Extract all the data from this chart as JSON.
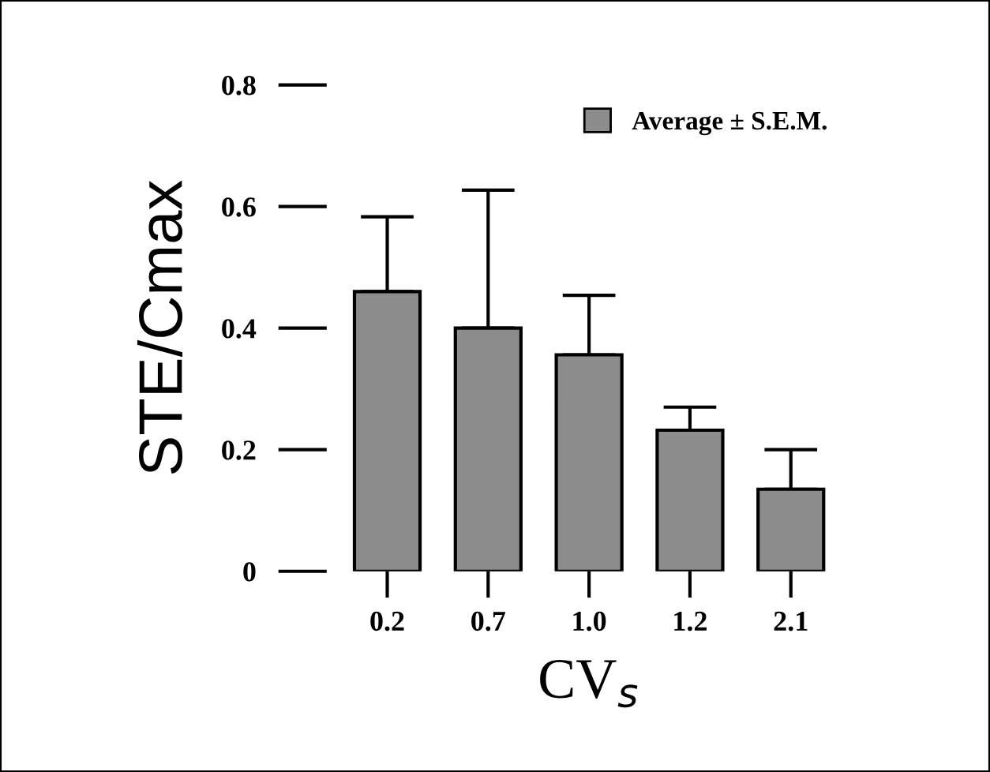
{
  "chart_data": {
    "type": "bar",
    "xlabel": "CV$_{s}$",
    "ylabel": "STE/Cmax",
    "categories": [
      "0.2",
      "0.7",
      "1.0",
      "1.2",
      "2.1"
    ],
    "series": [
      {
        "name": "Average ± S.E.M.",
        "color": "#8c8c8c",
        "values": [
          0.46,
          0.4,
          0.356,
          0.232,
          0.135
        ],
        "errors": [
          [
            0.46,
            0.583
          ],
          [
            0.4,
            0.627
          ],
          [
            0.356,
            0.454
          ],
          [
            0.232,
            0.27
          ],
          [
            0.135,
            0.2
          ]
        ]
      }
    ],
    "ylim": [
      0,
      0.8
    ],
    "yticks": [
      {
        "value": 0,
        "label": "0"
      },
      0.2,
      0.4,
      0.6,
      0.8
    ],
    "grid": false,
    "legend": "top right"
  }
}
